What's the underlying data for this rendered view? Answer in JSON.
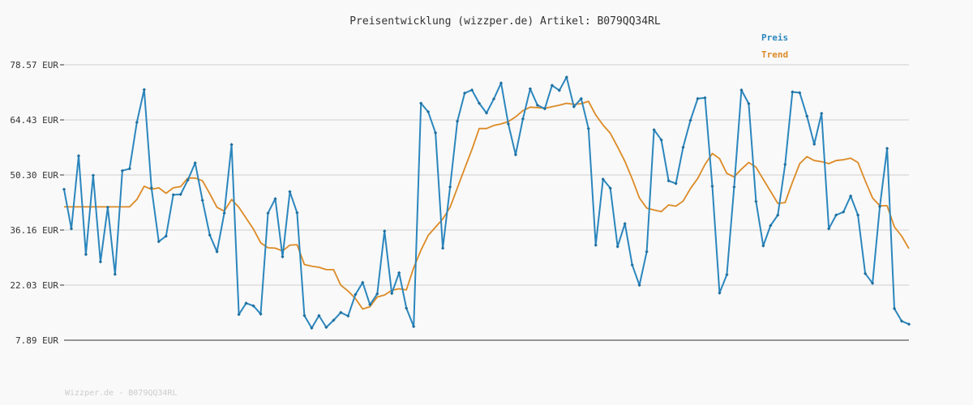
{
  "chart_data": {
    "type": "line",
    "title": "Preisentwicklung (wizzper.de) Artikel: B079QQ34RL",
    "ylim": [
      7.89,
      78.57
    ],
    "yticks": [
      "78.57 EUR",
      "64.43 EUR",
      "50.30 EUR",
      "36.16 EUR",
      "22.03 EUR",
      "7.89 EUR"
    ],
    "ytick_values": [
      78.57,
      64.43,
      50.3,
      36.16,
      22.03,
      7.89
    ],
    "grid": true,
    "legend_position": "top-right",
    "series": [
      {
        "name": "Preis",
        "color": "#2b86bd",
        "values": [
          46.6,
          36.5,
          55.2,
          29.9,
          50.2,
          28.0,
          42.0,
          24.8,
          51.4,
          51.9,
          63.8,
          72.2,
          47.0,
          33.2,
          34.6,
          45.2,
          45.3,
          49.0,
          53.4,
          43.8,
          34.9,
          30.6,
          40.5,
          58.1,
          14.5,
          17.4,
          16.7,
          14.6,
          40.5,
          44.2,
          29.3,
          46.0,
          40.6,
          14.2,
          11.0,
          14.2,
          11.2,
          13.0,
          15.0,
          14.1,
          19.6,
          22.7,
          17.0,
          19.8,
          35.9,
          19.9,
          25.2,
          16.1,
          11.4,
          68.7,
          66.5,
          61.1,
          31.5,
          47.2,
          64.1,
          71.3,
          72.1,
          68.7,
          66.2,
          69.8,
          73.9,
          63.4,
          55.5,
          64.7,
          72.4,
          68.2,
          67.3,
          73.3,
          72.0,
          75.4,
          67.8,
          69.9,
          62.2,
          32.3,
          49.2,
          46.9,
          31.9,
          37.8,
          27.2,
          22.0,
          30.6,
          61.9,
          59.3,
          48.8,
          48.1,
          57.4,
          64.3,
          69.9,
          70.1,
          47.4,
          20.0,
          24.7,
          47.2,
          72.1,
          68.6,
          43.5,
          32.1,
          37.3,
          40.0,
          53.0,
          71.6,
          71.4,
          65.4,
          58.2,
          66.1,
          36.5,
          40.0,
          40.8,
          44.9,
          40.0,
          25.0,
          22.5,
          42.2,
          57.1,
          16.0,
          12.8,
          12.0
        ]
      },
      {
        "name": "Trend",
        "color": "#dc8a25",
        "values": [
          42.1,
          42.1,
          42.1,
          42.1,
          42.1,
          42.1,
          42.1,
          42.1,
          42.1,
          42.1,
          44.0,
          47.4,
          46.6,
          47.0,
          45.6,
          47.0,
          47.3,
          49.5,
          49.5,
          48.8,
          45.5,
          42.0,
          41.0,
          44.0,
          42.0,
          39.2,
          36.4,
          32.9,
          31.6,
          31.5,
          30.8,
          32.3,
          32.4,
          27.3,
          26.9,
          26.6,
          26.0,
          26.0,
          22.0,
          20.5,
          18.6,
          15.9,
          16.5,
          19.0,
          19.5,
          20.7,
          21.1,
          20.8,
          26.5,
          31.0,
          34.8,
          36.9,
          39.0,
          42.0,
          47.0,
          52.0,
          56.8,
          62.2,
          62.2,
          63.0,
          63.4,
          64.0,
          65.2,
          66.8,
          67.7,
          67.6,
          67.4,
          67.8,
          68.2,
          68.7,
          68.4,
          68.6,
          69.2,
          65.7,
          63.1,
          61.0,
          57.5,
          53.8,
          49.3,
          44.4,
          41.8,
          41.3,
          40.9,
          42.6,
          42.3,
          43.6,
          46.8,
          49.4,
          53.0,
          55.8,
          54.5,
          50.7,
          49.8,
          51.8,
          53.5,
          52.3,
          49.2,
          46.1,
          43.0,
          43.2,
          48.4,
          53.2,
          55.0,
          54.0,
          53.7,
          53.2,
          54.0,
          54.2,
          54.6,
          53.5,
          48.8,
          44.4,
          42.4,
          42.4,
          37.0,
          34.6,
          31.4
        ]
      }
    ]
  },
  "footer_text": "Wizzper.de - B079QQ34RL"
}
